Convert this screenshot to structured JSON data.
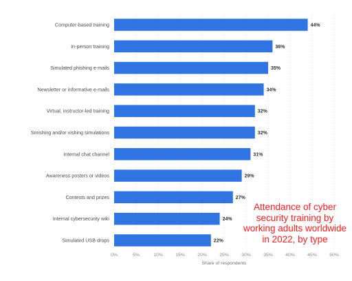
{
  "chart_data": {
    "type": "bar",
    "orientation": "horizontal",
    "categories": [
      "Computer-based training",
      "In-person training",
      "Simulated phishing e-mails",
      "Newsletter or informative e-mails",
      "Virtual, instructor-led training",
      "Smishing and/or vishing simulations",
      "Internal chat channel",
      "Awareness posters or videos",
      "Contests and prizes",
      "Internal cybersecurity wiki",
      "Simulated USB drops"
    ],
    "values": [
      44,
      36,
      35,
      34,
      32,
      32,
      31,
      29,
      27,
      24,
      22
    ],
    "value_labels": [
      "44%",
      "36%",
      "35%",
      "34%",
      "32%",
      "32%",
      "31%",
      "29%",
      "27%",
      "24%",
      "22%"
    ],
    "xlim": [
      0,
      50
    ],
    "xticks": [
      "0%",
      "5%",
      "10%",
      "15%",
      "20%",
      "25%",
      "30%",
      "35%",
      "40%",
      "45%",
      "50%"
    ],
    "xlabel": "Share of respondents",
    "grid": true,
    "colors": {
      "bar": "#2f74e0",
      "grid": "#d9d9d9"
    }
  },
  "annotation": {
    "text": "Attendance of cyber\nsecurity training by\nworking adults worldwide\nin 2022, by type",
    "color": "#ff1a1a"
  }
}
